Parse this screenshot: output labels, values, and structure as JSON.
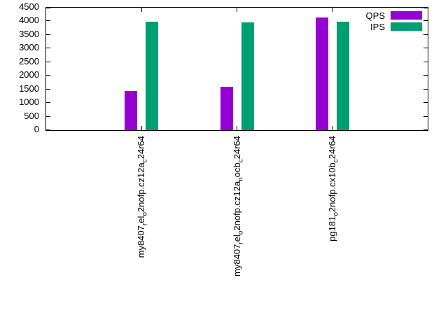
{
  "chart_data": {
    "type": "bar",
    "title": "",
    "xlabel": "",
    "ylabel": "",
    "categories": [
      "my8407_rel_o2nofp.cz12a_c24r64",
      "my8407_rel_o2nofp.cz12a_nocb_c24r64",
      "pg181_o2nofp.cx10b_c24r64"
    ],
    "series": [
      {
        "name": "QPS",
        "color": "#9400d3",
        "values": [
          1450,
          1600,
          4150
        ]
      },
      {
        "name": "IPS",
        "color": "#009e73",
        "values": [
          3975,
          3950,
          3975
        ]
      }
    ],
    "ylim": [
      0,
      4500
    ],
    "yticks": [
      0,
      500,
      1000,
      1500,
      2000,
      2500,
      3000,
      3500,
      4000,
      4500
    ],
    "grid": false,
    "legend_position": "top-right",
    "xlabel_rotation": -90
  }
}
